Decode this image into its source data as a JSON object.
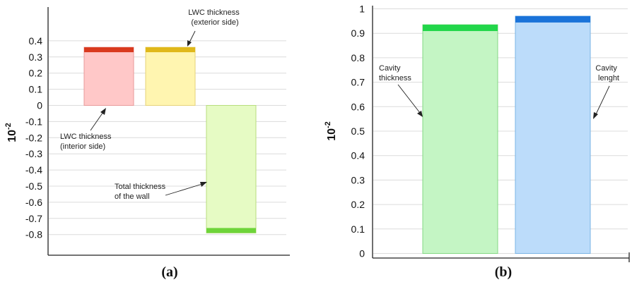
{
  "chart_data": [
    {
      "panel_label": "(a)",
      "type": "bar",
      "unit": "10",
      "unit_exponent": "-2",
      "ylim": [
        -0.85,
        0.43
      ],
      "yticks": [
        "0.4",
        "0.3",
        "0.2",
        "0.1",
        "0",
        "-0.1",
        "-0.2",
        "-0.3",
        "-0.4",
        "-0.5",
        "-0.6",
        "-0.7",
        "-0.8"
      ],
      "ytick_values": [
        0.4,
        0.3,
        0.2,
        0.1,
        0,
        -0.1,
        -0.2,
        -0.3,
        -0.4,
        -0.5,
        -0.6,
        -0.7,
        -0.8
      ],
      "grid": true,
      "bars": [
        {
          "value": 0.36,
          "fill": "#ffc8c8",
          "edge": "#e89a9a",
          "cap": "#d93a1e"
        },
        {
          "value": 0.36,
          "fill": "#fff5b0",
          "edge": "#e6d37a",
          "cap": "#e0b81a"
        },
        {
          "value": -0.79,
          "fill": "#e6fbc4",
          "edge": "#b8de7e",
          "cap": "#6ed43a"
        }
      ],
      "annotations": [
        {
          "line1": "LWC thickness",
          "line2": "(exterior side)"
        },
        {
          "line1": "LWC thickness",
          "line2": "(interior side)"
        },
        {
          "line1": "Total thickness",
          "line2": "of the wall"
        }
      ]
    },
    {
      "panel_label": "(b)",
      "type": "bar",
      "unit": "10",
      "unit_exponent": "-2",
      "ylim": [
        0,
        1.0
      ],
      "yticks": [
        "1",
        "0.9",
        "0.8",
        "0.7",
        "0.6",
        "0.5",
        "0.4",
        "0.3",
        "0.2",
        "0.1",
        "0"
      ],
      "ytick_values": [
        1,
        0.9,
        0.8,
        0.7,
        0.6,
        0.5,
        0.4,
        0.3,
        0.2,
        0.1,
        0
      ],
      "grid": true,
      "bars": [
        {
          "value": 0.935,
          "fill": "#c4f5c4",
          "edge": "#84d884",
          "cap": "#22d64a"
        },
        {
          "value": 0.97,
          "fill": "#bcdcfa",
          "edge": "#7ab4e4",
          "cap": "#1a73d9"
        }
      ],
      "annotations": [
        {
          "line1": "Cavity",
          "line2": "thickness"
        },
        {
          "line1": "Cavity",
          "line2": "lenght"
        }
      ]
    }
  ]
}
